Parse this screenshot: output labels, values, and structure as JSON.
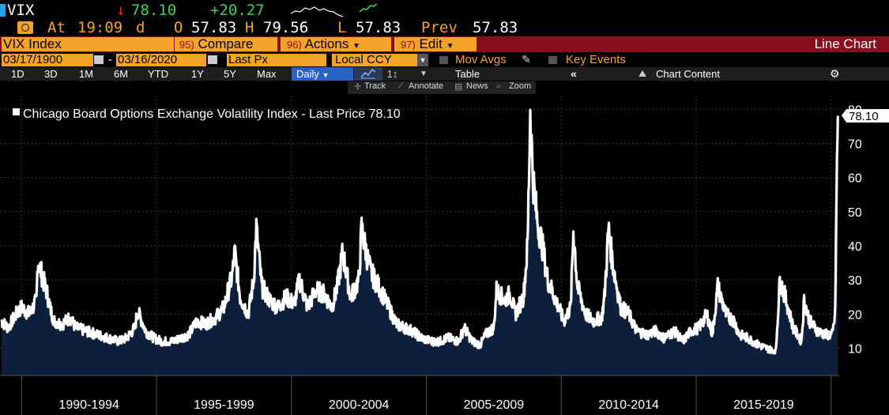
{
  "header": {
    "ticker": "VIX",
    "arrow": "↓",
    "last": "78.10",
    "change": "+20.27",
    "at_label": "At",
    "time": "19:09",
    "time_flag": "d",
    "open_label": "O",
    "open": "57.83",
    "high_label": "H",
    "high": "79.56",
    "low_label": "L",
    "low": "57.83",
    "prev_label": "Prev",
    "prev": "57.83"
  },
  "toolbar": {
    "security": "VIX Index",
    "compare_num": "95)",
    "compare": "Compare",
    "actions_num": "96)",
    "actions": "Actions",
    "edit_num": "97)",
    "edit": "Edit",
    "chart_kind": "Line Chart",
    "start_date": "03/17/1900",
    "end_date": "03/16/2020",
    "dash": "-",
    "field": "Last Px",
    "currency": "Local CCY",
    "mov_avgs": "Mov Avgs",
    "key_events": "Key Events",
    "ranges": [
      "1D",
      "3D",
      "1M",
      "6M",
      "YTD",
      "1Y",
      "5Y",
      "Max"
    ],
    "frequency": "Daily",
    "table": "Table",
    "chart_content": "Chart Content",
    "track": "Track",
    "annotate": "Annotate",
    "news": "News",
    "zoom": "Zoom"
  },
  "colors": {
    "accent_orange": "#f4a32a",
    "bar_red": "#8a0f1e",
    "up_green": "#3bd15a",
    "down_red": "#e8272c",
    "area_fill": "#0d1f3a"
  },
  "chart_data": {
    "type": "area",
    "title": "Chicago Board Options Exchange Volatility Index - Last Price 78.10",
    "last_value_label": "78.10",
    "y_ticks": [
      10,
      20,
      30,
      40,
      50,
      60,
      70,
      80
    ],
    "ylim": [
      2,
      84
    ],
    "xlim": [
      1989.2,
      2020.3
    ],
    "x_period_labels": [
      "1990-1994",
      "1995-1999",
      "2000-2004",
      "2005-2009",
      "2010-2014",
      "2015-2019"
    ],
    "x_period_starts": [
      1990,
      1995,
      2000,
      2005,
      2010,
      2015,
      2020
    ],
    "grid": true,
    "legend": "top-left",
    "series": [
      {
        "x": [
          1989.25,
          1989.5,
          1989.8,
          1990.0,
          1990.3,
          1990.55,
          1990.6,
          1990.8,
          1990.95,
          1991.05,
          1991.2,
          1991.5,
          1991.8,
          1992.0,
          1992.4,
          1992.8,
          1993.2,
          1993.6,
          1993.9,
          1994.2,
          1994.3,
          1994.6,
          1994.9,
          1995.2,
          1995.6,
          1995.9,
          1996.2,
          1996.5,
          1996.8,
          1997.2,
          1997.5,
          1997.8,
          1997.9,
          1998.1,
          1998.4,
          1998.6,
          1998.7,
          1998.9,
          1999.2,
          1999.5,
          1999.8,
          2000.1,
          2000.3,
          2000.6,
          2000.9,
          2001.2,
          2001.5,
          2001.7,
          2001.9,
          2002.2,
          2002.5,
          2002.6,
          2002.8,
          2002.95,
          2003.1,
          2003.3,
          2003.6,
          2003.9,
          2004.2,
          2004.5,
          2004.8,
          2005.2,
          2005.5,
          2005.8,
          2006.2,
          2006.4,
          2006.7,
          2007.0,
          2007.2,
          2007.5,
          2007.6,
          2007.9,
          2008.1,
          2008.3,
          2008.6,
          2008.75,
          2008.85,
          2008.95,
          2009.1,
          2009.3,
          2009.5,
          2009.8,
          2010.1,
          2010.35,
          2010.45,
          2010.6,
          2010.9,
          2011.2,
          2011.5,
          2011.6,
          2011.75,
          2011.9,
          2012.2,
          2012.5,
          2012.8,
          2013.2,
          2013.5,
          2013.8,
          2014.2,
          2014.5,
          2014.8,
          2015.1,
          2015.4,
          2015.6,
          2015.8,
          2016.1,
          2016.4,
          2016.6,
          2016.9,
          2017.3,
          2017.6,
          2017.95,
          2018.1,
          2018.3,
          2018.6,
          2018.9,
          2019.0,
          2019.2,
          2019.5,
          2019.8,
          2020.05,
          2020.15,
          2020.2,
          2020.25
        ],
        "y": [
          18,
          16,
          20,
          22,
          20,
          24,
          36,
          30,
          26,
          22,
          18,
          17,
          19,
          16,
          15,
          14,
          13,
          12,
          13,
          16,
          21,
          15,
          13,
          12,
          12,
          13,
          14,
          18,
          17,
          19,
          22,
          31,
          38,
          25,
          20,
          30,
          45,
          28,
          24,
          22,
          25,
          23,
          30,
          22,
          27,
          26,
          22,
          28,
          38,
          25,
          30,
          45,
          37,
          32,
          30,
          27,
          22,
          17,
          16,
          15,
          13,
          12,
          12,
          13,
          12,
          16,
          12,
          11,
          14,
          16,
          27,
          24,
          26,
          20,
          25,
          40,
          80,
          60,
          48,
          40,
          30,
          24,
          18,
          22,
          45,
          28,
          20,
          18,
          19,
          25,
          45,
          35,
          22,
          20,
          15,
          14,
          15,
          13,
          15,
          12,
          15,
          16,
          20,
          14,
          28,
          20,
          18,
          14,
          13,
          11,
          10,
          9,
          30,
          25,
          16,
          12,
          24,
          18,
          15,
          14,
          14,
          20,
          55,
          78.1
        ]
      }
    ]
  }
}
